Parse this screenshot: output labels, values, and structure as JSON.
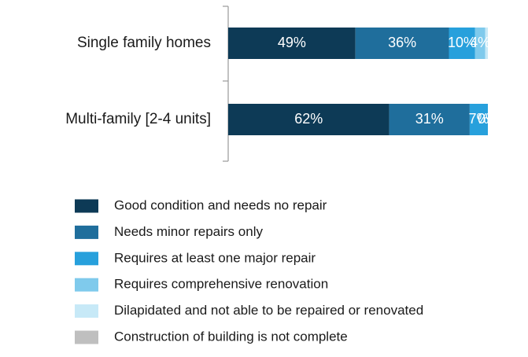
{
  "chart_data": {
    "type": "bar",
    "orientation": "horizontal",
    "stacked": true,
    "categories": [
      "Single family homes",
      "Multi-family [2-4 units]"
    ],
    "xlim": [
      0,
      100
    ],
    "series": [
      {
        "name": "Good condition and needs no repair",
        "color": "#0d3a56",
        "values": [
          49,
          62
        ],
        "value_labels": [
          "49%",
          "62%"
        ]
      },
      {
        "name": "Needs minor repairs only",
        "color": "#1f6e9c",
        "values": [
          36,
          31
        ],
        "value_labels": [
          "36%",
          "31%"
        ]
      },
      {
        "name": "Requires at least one major repair",
        "color": "#27a0dc",
        "values": [
          10,
          7
        ],
        "value_labels": [
          "10%",
          "7%"
        ]
      },
      {
        "name": "Requires comprehensive renovation",
        "color": "#7fcaec",
        "values": [
          4,
          0
        ],
        "value_labels": [
          "4%",
          "0%"
        ]
      },
      {
        "name": "Dilapidated and not able to be repaired or renovated",
        "color": "#c7e9f7",
        "values": [
          1,
          0
        ],
        "value_labels": [
          null,
          null
        ]
      },
      {
        "name": "Construction of building is not complete",
        "color": "#bfbfbf",
        "values": [
          0,
          0
        ],
        "value_labels": [
          null,
          null
        ]
      }
    ]
  }
}
